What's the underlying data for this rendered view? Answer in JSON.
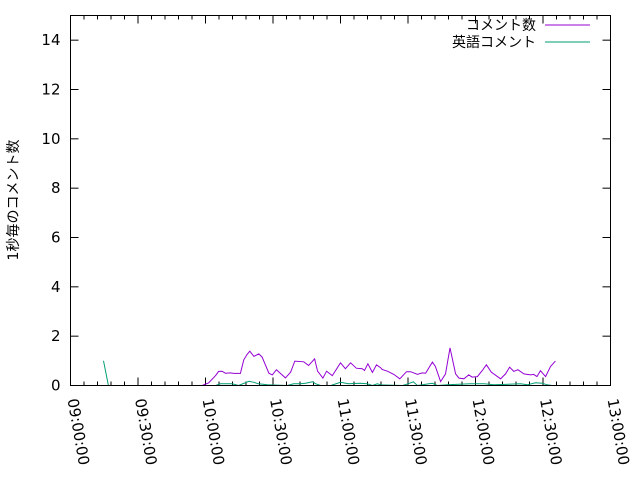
{
  "chart_data": {
    "type": "line",
    "title": "",
    "xlabel": "",
    "ylabel": "1秒毎のコメント数",
    "xlim": [
      "09:00:00",
      "13:00:00"
    ],
    "ylim": [
      0,
      15
    ],
    "x_ticks": [
      "09:00:00",
      "09:30:00",
      "10:00:00",
      "10:30:00",
      "11:00:00",
      "11:30:00",
      "12:00:00",
      "12:30:00",
      "13:00:00"
    ],
    "y_ticks": [
      0,
      2,
      4,
      6,
      8,
      10,
      12,
      14
    ],
    "grid": false,
    "legend_position": "top-right",
    "series": [
      {
        "name": "コメント数",
        "color": "#9400d3",
        "points": [
          [
            "09:58:30",
            0
          ],
          [
            "10:01:20",
            0.1
          ],
          [
            "10:04:30",
            0.4
          ],
          [
            "10:05:50",
            0.57
          ],
          [
            "10:07:20",
            0.58
          ],
          [
            "10:08:50",
            0.5
          ],
          [
            "10:11:10",
            0.51
          ],
          [
            "10:12:30",
            0.49
          ],
          [
            "10:15:30",
            0.49
          ],
          [
            "10:17:00",
            1.04
          ],
          [
            "10:18:30",
            1.26
          ],
          [
            "10:19:40",
            1.39
          ],
          [
            "10:21:30",
            1.18
          ],
          [
            "10:23:40",
            1.28
          ],
          [
            "10:25:10",
            1.15
          ],
          [
            "10:28:10",
            0.5
          ],
          [
            "10:29:40",
            0.43
          ],
          [
            "10:31:30",
            0.64
          ],
          [
            "10:35:30",
            0.31
          ],
          [
            "10:37:50",
            0.54
          ],
          [
            "10:39:40",
            0.99
          ],
          [
            "10:43:40",
            0.96
          ],
          [
            "10:45:50",
            0.81
          ],
          [
            "10:48:30",
            1.08
          ],
          [
            "10:49:50",
            0.58
          ],
          [
            "10:52:10",
            0.3
          ],
          [
            "10:53:50",
            0.58
          ],
          [
            "10:56:20",
            0.4
          ],
          [
            "11:00:00",
            0.92
          ],
          [
            "11:02:10",
            0.68
          ],
          [
            "11:04:30",
            0.92
          ],
          [
            "11:07:00",
            0.7
          ],
          [
            "11:09:40",
            0.68
          ],
          [
            "11:10:40",
            0.61
          ],
          [
            "11:12:10",
            0.88
          ],
          [
            "11:14:10",
            0.53
          ],
          [
            "11:16:00",
            0.84
          ],
          [
            "11:17:50",
            0.72
          ],
          [
            "11:18:30",
            0.65
          ],
          [
            "11:20:50",
            0.58
          ],
          [
            "11:23:40",
            0.45
          ],
          [
            "11:26:20",
            0.27
          ],
          [
            "11:29:20",
            0.56
          ],
          [
            "11:31:10",
            0.56
          ],
          [
            "11:34:10",
            0.45
          ],
          [
            "11:36:20",
            0.51
          ],
          [
            "11:37:50",
            0.5
          ],
          [
            "11:40:50",
            0.95
          ],
          [
            "11:42:10",
            0.77
          ],
          [
            "11:44:30",
            0.16
          ],
          [
            "11:46:40",
            0.47
          ],
          [
            "11:48:40",
            1.53
          ],
          [
            "11:51:10",
            0.47
          ],
          [
            "11:52:40",
            0.3
          ],
          [
            "11:54:50",
            0.27
          ],
          [
            "11:57:00",
            0.43
          ],
          [
            "11:58:30",
            0.34
          ],
          [
            "12:00:50",
            0.36
          ],
          [
            "12:03:00",
            0.61
          ],
          [
            "12:04:50",
            0.84
          ],
          [
            "12:07:00",
            0.54
          ],
          [
            "12:11:10",
            0.27
          ],
          [
            "12:13:20",
            0.47
          ],
          [
            "12:15:10",
            0.74
          ],
          [
            "12:17:00",
            0.57
          ],
          [
            "12:18:50",
            0.64
          ],
          [
            "12:21:30",
            0.47
          ],
          [
            "12:24:30",
            0.43
          ],
          [
            "12:25:50",
            0.45
          ],
          [
            "12:27:20",
            0.36
          ],
          [
            "12:28:50",
            0.6
          ],
          [
            "12:31:10",
            0.36
          ],
          [
            "12:33:20",
            0.77
          ],
          [
            "12:35:30",
            0.99
          ]
        ]
      },
      {
        "name": "英語コメント",
        "color": "#009e73",
        "points": [
          [
            "09:14:40",
            1
          ],
          [
            "09:16:50",
            0
          ],
          [
            "10:04:30",
            0
          ],
          [
            "10:06:40",
            0.07
          ],
          [
            "10:11:50",
            0.07
          ],
          [
            "10:14:40",
            0
          ],
          [
            "10:19:20",
            0.17
          ],
          [
            "10:21:30",
            0.13
          ],
          [
            "10:23:30",
            0.07
          ],
          [
            "10:27:30",
            0.03
          ],
          [
            "10:36:20",
            0
          ],
          [
            "10:39:10",
            0.07
          ],
          [
            "10:42:10",
            0.07
          ],
          [
            "10:44:30",
            0.09
          ],
          [
            "10:47:30",
            0.15
          ],
          [
            "10:49:00",
            0.07
          ],
          [
            "10:51:10",
            0
          ],
          [
            "10:55:40",
            0
          ],
          [
            "11:00:00",
            0.13
          ],
          [
            "11:03:30",
            0.07
          ],
          [
            "11:08:50",
            0.09
          ],
          [
            "11:11:50",
            0.07
          ],
          [
            "11:14:10",
            0
          ],
          [
            "11:16:20",
            0.07
          ],
          [
            "11:17:50",
            0.03
          ],
          [
            "11:27:30",
            0
          ],
          [
            "11:30:00",
            0.07
          ],
          [
            "11:32:20",
            0.15
          ],
          [
            "11:34:10",
            0
          ],
          [
            "11:40:50",
            0.09
          ],
          [
            "11:43:00",
            0
          ],
          [
            "11:47:30",
            0.03
          ],
          [
            "11:57:50",
            0.07
          ],
          [
            "12:03:50",
            0.07
          ],
          [
            "12:08:10",
            0.03
          ],
          [
            "12:20:00",
            0.07
          ],
          [
            "12:23:00",
            0.03
          ],
          [
            "12:26:40",
            0.11
          ],
          [
            "12:29:40",
            0.09
          ],
          [
            "12:31:50",
            0.03
          ],
          [
            "12:34:00",
            0
          ]
        ]
      }
    ]
  }
}
